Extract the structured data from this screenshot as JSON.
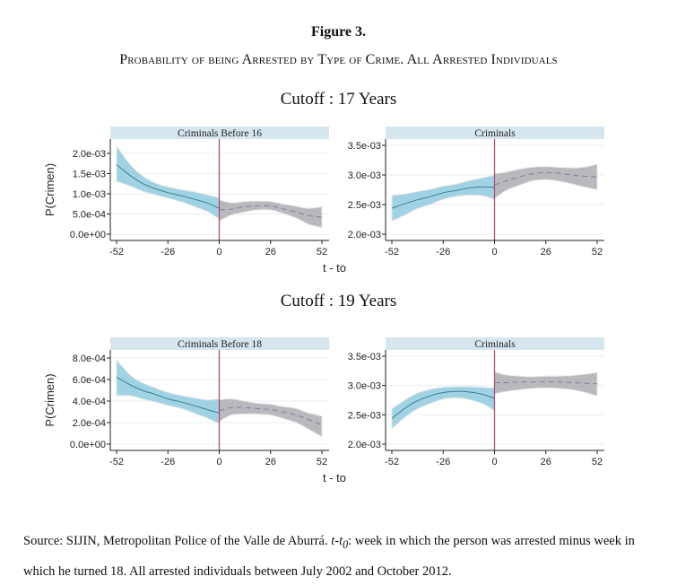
{
  "figure": {
    "title": "Figure 3.",
    "subtitle": "Probability of being Arrested by Type of Crime. All Arrested Individuals"
  },
  "source_note": {
    "prefix": "Source: SIJIN, Metropolitan Police of the Valle de Aburrá. ",
    "variable": "t-t",
    "variable_sub": "0",
    "suffix": ": week in which the person was arrested minus week in which he turned 18. All arrested individuals between July 2002 and October 2012."
  },
  "colors": {
    "strip_bg": "#d6e6ee",
    "left_band": "#9fd3e3",
    "left_line": "#3a7f8f",
    "right_band": "#b9b9bd",
    "right_line": "#7f7fa6",
    "cutoff_line": "#b0507a",
    "grid": "#e8eef0",
    "band_edge": "#e6e6e6"
  },
  "chart_data": [
    {
      "type": "line",
      "group": "Cutoff : 17 Years",
      "title": "Criminals Before 16",
      "xlabel": "",
      "ylabel": "P(Crimen)",
      "xlim": [
        -52,
        52
      ],
      "ylim": [
        0.0,
        0.002
      ],
      "xticks": [
        "-52",
        "-26",
        "0",
        "26",
        "52"
      ],
      "yticks": [
        "0.0e+00",
        "5.0e-04",
        "1.0e-03",
        "1.5e-03",
        "2.0e-03"
      ],
      "ytick_values": [
        0.0,
        0.0005,
        0.001,
        0.0015,
        0.002
      ],
      "grid": true,
      "cutoff_x": 0,
      "series": [
        {
          "name": "before",
          "x": [
            -52,
            -45,
            -39,
            -32,
            -26,
            -19,
            -13,
            -6,
            0
          ],
          "y": [
            0.00172,
            0.00145,
            0.00126,
            0.00112,
            0.00103,
            0.00095,
            0.00087,
            0.00077,
            0.00064
          ],
          "lower": [
            0.00131,
            0.00119,
            0.00107,
            0.00097,
            0.00089,
            0.0008,
            0.00069,
            0.00056,
            0.00038
          ],
          "upper": [
            0.00218,
            0.00172,
            0.00145,
            0.00126,
            0.00117,
            0.0011,
            0.00105,
            0.00097,
            0.0009
          ]
        },
        {
          "name": "after",
          "x": [
            0,
            6,
            13,
            19,
            26,
            32,
            39,
            45,
            52
          ],
          "y": [
            0.0006,
            0.00062,
            0.00068,
            0.0007,
            0.0007,
            0.00063,
            0.00055,
            0.00046,
            0.00042
          ],
          "lower": [
            0.00033,
            0.00047,
            0.00055,
            0.0006,
            0.0006,
            0.00052,
            0.0004,
            0.00025,
            0.00016
          ],
          "upper": [
            0.00085,
            0.00078,
            0.00081,
            0.00082,
            0.00081,
            0.00075,
            0.00069,
            0.00064,
            0.00068
          ]
        }
      ]
    },
    {
      "type": "line",
      "group": "Cutoff : 17 Years",
      "title": "Criminals",
      "xlabel": "t - to",
      "ylabel": "",
      "xlim": [
        -52,
        52
      ],
      "ylim": [
        0.002,
        0.0035
      ],
      "xticks": [
        "-52",
        "-26",
        "0",
        "26",
        "52"
      ],
      "yticks": [
        "2.0e-03",
        "2.5e-03",
        "3.0e-03",
        "3.5e-03"
      ],
      "ytick_values": [
        0.002,
        0.0025,
        0.003,
        0.0035
      ],
      "grid": true,
      "cutoff_x": 0,
      "series": [
        {
          "name": "before",
          "x": [
            -52,
            -45,
            -39,
            -32,
            -26,
            -19,
            -13,
            -6,
            0
          ],
          "y": [
            0.00244,
            0.00252,
            0.00258,
            0.00264,
            0.0027,
            0.00274,
            0.00278,
            0.0028,
            0.00279
          ],
          "lower": [
            0.00222,
            0.00233,
            0.00243,
            0.00251,
            0.00259,
            0.00264,
            0.00266,
            0.00265,
            0.00259
          ],
          "upper": [
            0.00266,
            0.00268,
            0.00272,
            0.00276,
            0.00281,
            0.00285,
            0.0029,
            0.00295,
            0.003
          ]
        },
        {
          "name": "after",
          "x": [
            0,
            6,
            13,
            19,
            26,
            32,
            39,
            45,
            52
          ],
          "y": [
            0.00283,
            0.0029,
            0.00297,
            0.00302,
            0.00304,
            0.00303,
            0.003,
            0.00298,
            0.00297
          ],
          "lower": [
            0.0026,
            0.00274,
            0.00283,
            0.0029,
            0.00292,
            0.0029,
            0.00285,
            0.0028,
            0.00275
          ],
          "upper": [
            0.00302,
            0.00305,
            0.0031,
            0.00313,
            0.00314,
            0.00313,
            0.00312,
            0.00313,
            0.00318
          ]
        }
      ]
    },
    {
      "type": "line",
      "group": "Cutoff : 19 Years",
      "title": "Criminals Before 18",
      "xlabel": "t - to",
      "ylabel": "P(Crimen)",
      "xlim": [
        -52,
        52
      ],
      "ylim": [
        0.0,
        0.0008
      ],
      "xticks": [
        "-52",
        "-26",
        "0",
        "26",
        "52"
      ],
      "yticks": [
        "0.0e+00",
        "2.0e-04",
        "4.0e-04",
        "6.0e-04",
        "8.0e-04"
      ],
      "ytick_values": [
        0.0,
        0.0002,
        0.0004,
        0.0006,
        0.0008
      ],
      "grid": true,
      "cutoff_x": 0,
      "series": [
        {
          "name": "before",
          "x": [
            -52,
            -45,
            -39,
            -32,
            -26,
            -19,
            -13,
            -6,
            0
          ],
          "y": [
            0.00062,
            0.00055,
            0.0005,
            0.00046,
            0.00042,
            0.00039,
            0.00036,
            0.00032,
            0.00029
          ],
          "lower": [
            0.00045,
            0.00045,
            0.00042,
            0.00039,
            0.00036,
            0.00033,
            0.00029,
            0.00024,
            0.00019
          ],
          "upper": [
            0.00078,
            0.00064,
            0.00057,
            0.00052,
            0.00048,
            0.00045,
            0.00043,
            0.00041,
            0.00042
          ]
        },
        {
          "name": "after",
          "x": [
            0,
            6,
            13,
            19,
            26,
            32,
            39,
            45,
            52
          ],
          "y": [
            0.00031,
            0.00034,
            0.00034,
            0.00033,
            0.00032,
            0.0003,
            0.00027,
            0.00023,
            0.00018
          ],
          "lower": [
            0.00021,
            0.00027,
            0.00028,
            0.00028,
            0.00027,
            0.00024,
            0.0002,
            0.00014,
            7e-05
          ],
          "upper": [
            0.00041,
            0.00042,
            0.0004,
            0.00038,
            0.00037,
            0.00035,
            0.00033,
            0.00029,
            0.00026
          ]
        }
      ]
    },
    {
      "type": "line",
      "group": "Cutoff : 19 Years",
      "title": "Criminals",
      "xlabel": "",
      "ylabel": "",
      "xlim": [
        -52,
        52
      ],
      "ylim": [
        0.002,
        0.0035
      ],
      "xticks": [
        "-52",
        "-26",
        "0",
        "26",
        "52"
      ],
      "yticks": [
        "2.0e-03",
        "2.5e-03",
        "3.0e-03",
        "3.5e-03"
      ],
      "ytick_values": [
        0.002,
        0.0025,
        0.003,
        0.0035
      ],
      "grid": true,
      "cutoff_x": 0,
      "series": [
        {
          "name": "before",
          "x": [
            -52,
            -45,
            -39,
            -32,
            -26,
            -19,
            -13,
            -6,
            0
          ],
          "y": [
            0.00244,
            0.00262,
            0.00274,
            0.00283,
            0.00288,
            0.0029,
            0.00289,
            0.00285,
            0.00278
          ],
          "lower": [
            0.00226,
            0.00247,
            0.0026,
            0.0027,
            0.00277,
            0.00279,
            0.00276,
            0.00269,
            0.00257
          ],
          "upper": [
            0.0026,
            0.00276,
            0.00287,
            0.00294,
            0.00297,
            0.00298,
            0.00298,
            0.00297,
            0.00296
          ]
        },
        {
          "name": "after",
          "x": [
            0,
            6,
            13,
            19,
            26,
            32,
            39,
            45,
            52
          ],
          "y": [
            0.00305,
            0.00305,
            0.00306,
            0.00306,
            0.00306,
            0.00306,
            0.00305,
            0.00304,
            0.00303
          ],
          "lower": [
            0.00286,
            0.0029,
            0.00293,
            0.00295,
            0.00296,
            0.00295,
            0.00293,
            0.00289,
            0.00282
          ],
          "upper": [
            0.00323,
            0.00318,
            0.00316,
            0.00315,
            0.00316,
            0.00316,
            0.00317,
            0.00319,
            0.00322
          ]
        }
      ]
    }
  ],
  "cutoff_labels": [
    "Cutoff : 17 Years",
    "Cutoff : 19 Years"
  ]
}
